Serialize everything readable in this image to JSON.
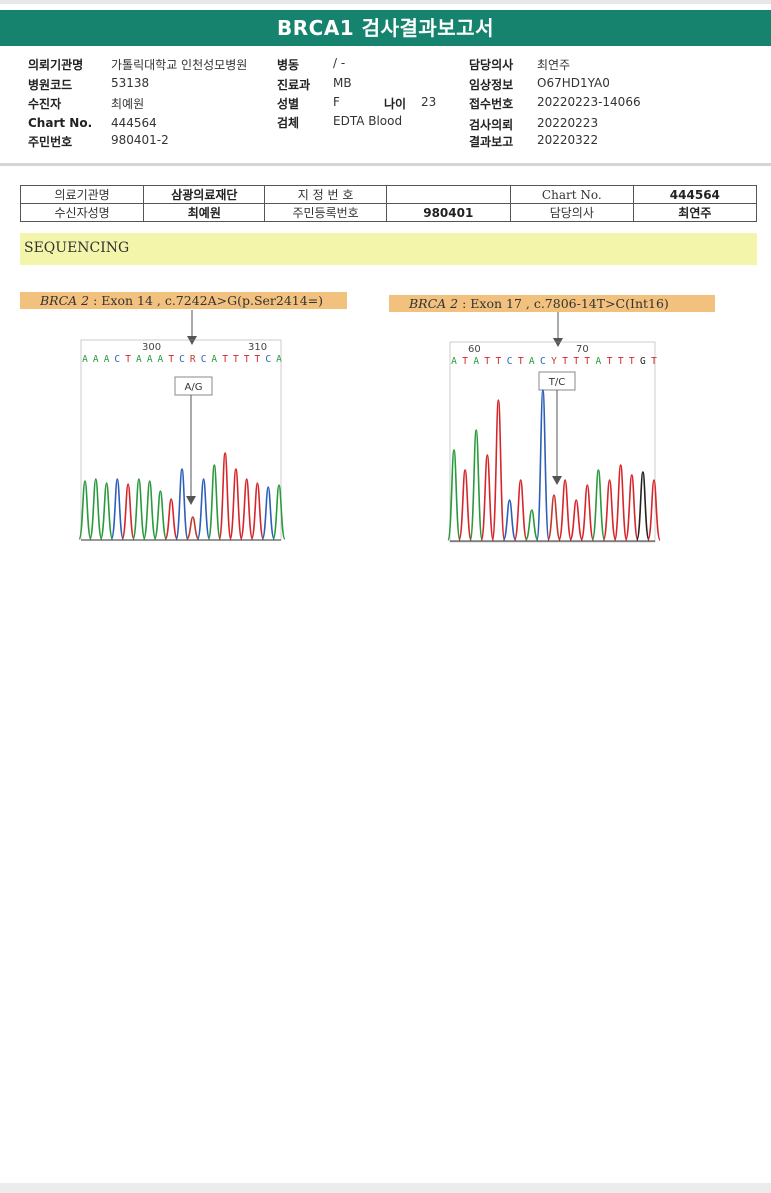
{
  "title": "BRCA1 검사결과보고서",
  "header": {
    "institution_label": "의뢰기관명",
    "institution": "가톨릭대학교 인천성모병원",
    "hospcode_label": "병원코드",
    "hospcode": "53138",
    "receiver_label": "수진자",
    "receiver": "최예원",
    "chart_label": "Chart No.",
    "chart": "444564",
    "rrn_label": "주민번호",
    "rrn": "980401-2",
    "ward_label": "병동",
    "ward": "/ -",
    "dept_label": "진료과",
    "dept": "MB",
    "sex_label": "성별",
    "sex": "F",
    "age_label": "나이",
    "age": "23",
    "specimen_label": "검체",
    "specimen": "EDTA Blood",
    "doctor_label": "담당의사",
    "doctor": "최연주",
    "clinical_label": "임상정보",
    "clinical": "O67HD1YA0",
    "receipt_label": "접수번호",
    "receipt": "20220223-14066",
    "request_label": "검사의뢰",
    "request": "20220223",
    "report_label": "결과보고",
    "report": "20220322"
  },
  "info_table": {
    "h1": "의료기관명",
    "v1": "삼광의료재단",
    "h2": "지 정 번 호",
    "v2": "",
    "h3": "Chart No.",
    "v3": "444564",
    "h4": "수신자성명",
    "v4": "최예원",
    "h5": "주민등록번호",
    "v5": "980401",
    "h6": "담당의사",
    "v6": "최연주"
  },
  "section": "SEQUENCING",
  "variants": [
    {
      "gene": "BRCA 2",
      "rest": " : Exon 14 , c.7242A>G(p.Ser2414=)",
      "sequence": "AAACTAAATCRCATTTTCA",
      "pos_a": "300",
      "pos_b": "310",
      "call": "A/G"
    },
    {
      "gene": "BRCA 2",
      "rest": " : Exon 17 , c.7806-14T>C(Int16)",
      "sequence": "ATATTCTACYTTTATTTGT",
      "pos_a": "60",
      "pos_b": "70",
      "call": "T/C"
    }
  ],
  "colors": {
    "title_bg": "#16836f",
    "seq_bar": "#f3f5ab",
    "label_bg": "#f2c17e",
    "A": "#2a9a3c",
    "T": "#d6262b",
    "C": "#2d5fb8",
    "G": "#222222"
  }
}
